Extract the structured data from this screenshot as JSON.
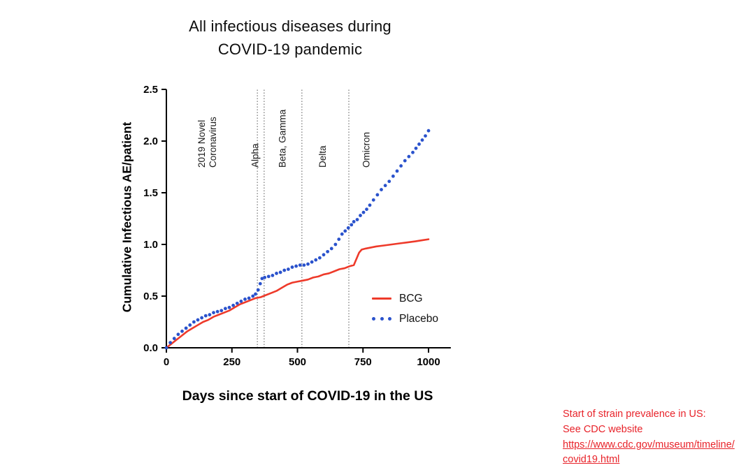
{
  "title": {
    "line1": "All infectious diseases during",
    "line2": "COVID-19 pandemic"
  },
  "chart_data": {
    "type": "line",
    "title": "All infectious diseases during COVID-19 pandemic",
    "xlabel": "Days since start of COVID-19 in the US",
    "ylabel": "Cumulative Infectious AE/patient",
    "xlim": [
      0,
      1085
    ],
    "ylim": [
      0,
      2.5
    ],
    "x_ticks": [
      0,
      250,
      500,
      750,
      1000
    ],
    "y_ticks": [
      0,
      0.5,
      1,
      1.5,
      2,
      2.5
    ],
    "grid": false,
    "legend_position": "inside-right",
    "milestone_lines_days": [
      347,
      373,
      517,
      696
    ],
    "milestone_labels": [
      {
        "lines": [
          "2019 Novel",
          "Coronavirus"
        ],
        "day": 147
      },
      {
        "lines": [
          "Alpha"
        ],
        "day": 350
      },
      {
        "lines": [
          "Beta, Gamma"
        ],
        "day": 455
      },
      {
        "lines": [
          "Delta"
        ],
        "day": 608
      },
      {
        "lines": [
          "Omicron"
        ],
        "day": 775
      }
    ],
    "series": [
      {
        "name": "BCG",
        "color": "#ee3a2a",
        "style": "solid",
        "points": [
          [
            0,
            0
          ],
          [
            20,
            0.04
          ],
          [
            40,
            0.08
          ],
          [
            60,
            0.12
          ],
          [
            80,
            0.16
          ],
          [
            100,
            0.19
          ],
          [
            120,
            0.22
          ],
          [
            140,
            0.25
          ],
          [
            160,
            0.27
          ],
          [
            180,
            0.3
          ],
          [
            200,
            0.32
          ],
          [
            220,
            0.34
          ],
          [
            240,
            0.36
          ],
          [
            260,
            0.39
          ],
          [
            280,
            0.42
          ],
          [
            300,
            0.44
          ],
          [
            320,
            0.46
          ],
          [
            340,
            0.48
          ],
          [
            360,
            0.49
          ],
          [
            380,
            0.51
          ],
          [
            400,
            0.53
          ],
          [
            420,
            0.55
          ],
          [
            440,
            0.58
          ],
          [
            460,
            0.61
          ],
          [
            480,
            0.63
          ],
          [
            500,
            0.64
          ],
          [
            520,
            0.65
          ],
          [
            540,
            0.66
          ],
          [
            560,
            0.68
          ],
          [
            580,
            0.69
          ],
          [
            600,
            0.71
          ],
          [
            620,
            0.72
          ],
          [
            640,
            0.74
          ],
          [
            660,
            0.76
          ],
          [
            680,
            0.77
          ],
          [
            700,
            0.79
          ],
          [
            715,
            0.8
          ],
          [
            725,
            0.86
          ],
          [
            735,
            0.92
          ],
          [
            745,
            0.95
          ],
          [
            760,
            0.96
          ],
          [
            780,
            0.97
          ],
          [
            800,
            0.98
          ],
          [
            830,
            0.99
          ],
          [
            860,
            1.0
          ],
          [
            890,
            1.01
          ],
          [
            920,
            1.02
          ],
          [
            950,
            1.03
          ],
          [
            975,
            1.04
          ],
          [
            1000,
            1.05
          ]
        ]
      },
      {
        "name": "Placebo",
        "color": "#2a52cc",
        "style": "dotted",
        "points": [
          [
            0,
            0
          ],
          [
            15,
            0.05
          ],
          [
            30,
            0.09
          ],
          [
            45,
            0.13
          ],
          [
            60,
            0.16
          ],
          [
            75,
            0.19
          ],
          [
            90,
            0.22
          ],
          [
            105,
            0.25
          ],
          [
            120,
            0.27
          ],
          [
            135,
            0.29
          ],
          [
            150,
            0.31
          ],
          [
            165,
            0.32
          ],
          [
            180,
            0.34
          ],
          [
            195,
            0.35
          ],
          [
            210,
            0.36
          ],
          [
            225,
            0.38
          ],
          [
            240,
            0.39
          ],
          [
            255,
            0.41
          ],
          [
            270,
            0.43
          ],
          [
            285,
            0.45
          ],
          [
            300,
            0.47
          ],
          [
            315,
            0.48
          ],
          [
            330,
            0.5
          ],
          [
            340,
            0.52
          ],
          [
            350,
            0.56
          ],
          [
            358,
            0.62
          ],
          [
            365,
            0.67
          ],
          [
            375,
            0.68
          ],
          [
            390,
            0.69
          ],
          [
            405,
            0.7
          ],
          [
            420,
            0.72
          ],
          [
            435,
            0.73
          ],
          [
            450,
            0.75
          ],
          [
            465,
            0.76
          ],
          [
            480,
            0.78
          ],
          [
            495,
            0.79
          ],
          [
            510,
            0.8
          ],
          [
            525,
            0.8
          ],
          [
            540,
            0.81
          ],
          [
            555,
            0.83
          ],
          [
            570,
            0.85
          ],
          [
            585,
            0.87
          ],
          [
            600,
            0.9
          ],
          [
            615,
            0.93
          ],
          [
            630,
            0.96
          ],
          [
            645,
            1.0
          ],
          [
            658,
            1.05
          ],
          [
            670,
            1.1
          ],
          [
            682,
            1.13
          ],
          [
            694,
            1.16
          ],
          [
            706,
            1.19
          ],
          [
            715,
            1.22
          ],
          [
            728,
            1.24
          ],
          [
            740,
            1.28
          ],
          [
            752,
            1.31
          ],
          [
            764,
            1.34
          ],
          [
            776,
            1.38
          ],
          [
            790,
            1.43
          ],
          [
            805,
            1.48
          ],
          [
            820,
            1.53
          ],
          [
            835,
            1.57
          ],
          [
            850,
            1.61
          ],
          [
            865,
            1.66
          ],
          [
            880,
            1.71
          ],
          [
            895,
            1.76
          ],
          [
            910,
            1.81
          ],
          [
            925,
            1.85
          ],
          [
            940,
            1.89
          ],
          [
            952,
            1.93
          ],
          [
            964,
            1.97
          ],
          [
            976,
            2.01
          ],
          [
            988,
            2.05
          ],
          [
            1000,
            2.1
          ]
        ]
      }
    ]
  },
  "annotation": {
    "line1": "Start of strain prevalence in US:",
    "line2": "See CDC website",
    "link_text": "https://www.cdc.gov/museum/timeline/covid19.html",
    "color": "#e8232a"
  }
}
